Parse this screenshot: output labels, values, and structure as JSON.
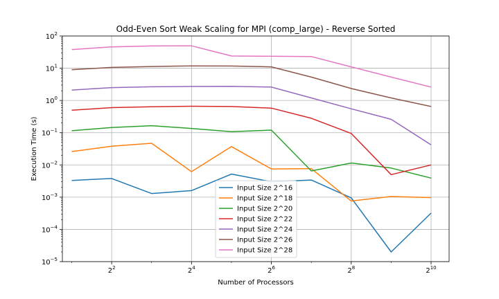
{
  "chart_data": {
    "type": "line",
    "title": "Odd-Even Sort Weak Scaling for MPI (comp_large) - Reverse Sorted",
    "xlabel": "Number of Processors",
    "ylabel": "Execution Time (s)",
    "xscale": "log2",
    "yscale": "log10",
    "xlim": [
      1.7,
      1400
    ],
    "ylim": [
      1e-05,
      100
    ],
    "grid": true,
    "legend_position": "lower-center",
    "x": [
      2,
      4,
      8,
      16,
      32,
      64,
      128,
      256,
      512,
      1024
    ],
    "x_ticks": [
      {
        "value": 4,
        "base": "2",
        "exp": "2"
      },
      {
        "value": 16,
        "base": "2",
        "exp": "4"
      },
      {
        "value": 64,
        "base": "2",
        "exp": "6"
      },
      {
        "value": 256,
        "base": "2",
        "exp": "8"
      },
      {
        "value": 1024,
        "base": "2",
        "exp": "10"
      }
    ],
    "y_ticks": [
      {
        "value": 1e-05,
        "base": "10",
        "exp": "−5"
      },
      {
        "value": 0.0001,
        "base": "10",
        "exp": "−4"
      },
      {
        "value": 0.001,
        "base": "10",
        "exp": "−3"
      },
      {
        "value": 0.01,
        "base": "10",
        "exp": "−2"
      },
      {
        "value": 0.1,
        "base": "10",
        "exp": "−1"
      },
      {
        "value": 1,
        "base": "10",
        "exp": "0"
      },
      {
        "value": 10,
        "base": "10",
        "exp": "1"
      },
      {
        "value": 100,
        "base": "10",
        "exp": "2"
      }
    ],
    "series": [
      {
        "name": "Input Size 2^16",
        "color": "#1f77b4",
        "values": [
          0.0033,
          0.0038,
          0.0013,
          0.0016,
          0.0052,
          0.003,
          0.0034,
          0.00095,
          2e-05,
          0.00032
        ]
      },
      {
        "name": "Input Size 2^18",
        "color": "#ff7f0e",
        "values": [
          0.026,
          0.038,
          0.047,
          0.0062,
          0.037,
          0.0075,
          0.0077,
          0.00076,
          0.00105,
          0.00097
        ]
      },
      {
        "name": "Input Size 2^20",
        "color": "#2ca02c",
        "values": [
          0.115,
          0.145,
          0.165,
          0.135,
          0.107,
          0.12,
          0.0065,
          0.0115,
          0.008,
          0.0039
        ]
      },
      {
        "name": "Input Size 2^22",
        "color": "#d62728",
        "values": [
          0.5,
          0.6,
          0.64,
          0.66,
          0.65,
          0.58,
          0.28,
          0.095,
          0.005,
          0.01
        ]
      },
      {
        "name": "Input Size 2^24",
        "color": "#9467bd",
        "values": [
          2.1,
          2.5,
          2.65,
          2.72,
          2.75,
          2.6,
          1.2,
          0.55,
          0.26,
          0.042
        ]
      },
      {
        "name": "Input Size 2^26",
        "color": "#8c564b",
        "values": [
          9.0,
          10.6,
          11.3,
          11.8,
          11.7,
          11.0,
          5.3,
          2.35,
          1.2,
          0.65
        ]
      },
      {
        "name": "Input Size 2^28",
        "color": "#e377c2",
        "values": [
          38,
          46,
          49,
          49.5,
          24,
          23.5,
          23,
          11,
          5.3,
          2.6
        ]
      }
    ]
  }
}
